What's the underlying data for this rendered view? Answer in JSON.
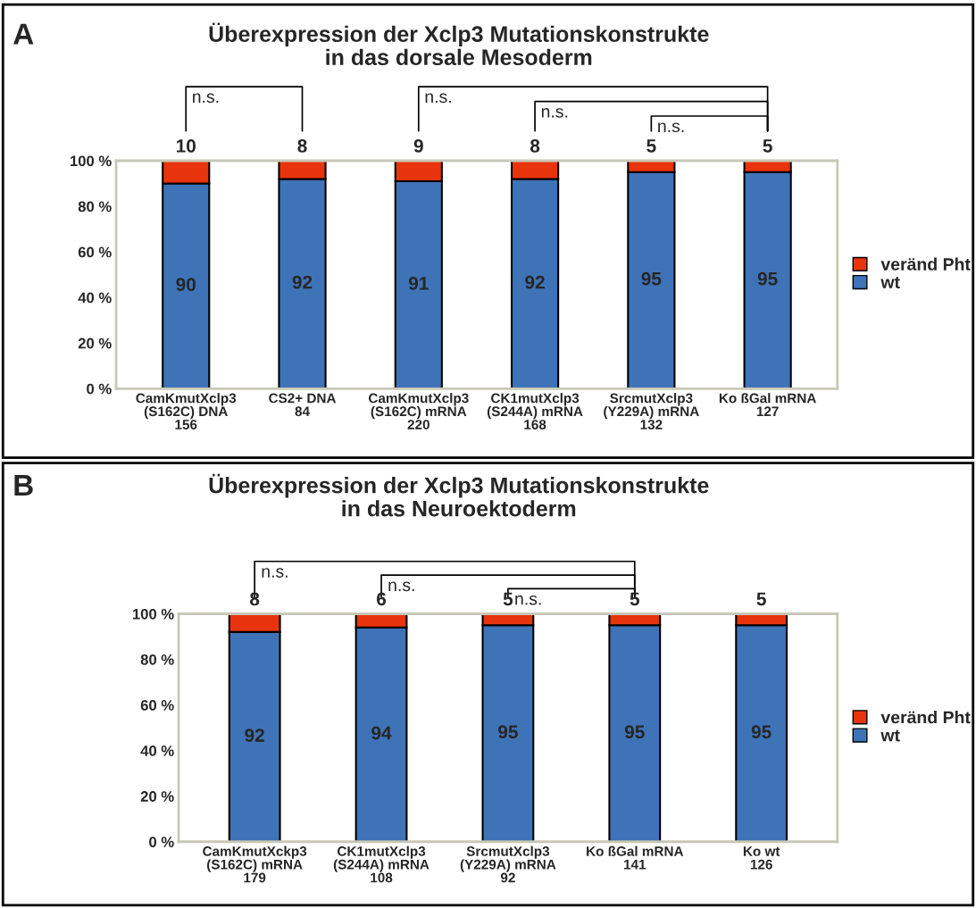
{
  "chart_data": [
    {
      "type": "bar",
      "title": "Überexpression der Xclp3 Mutationskonstrukte\nin das dorsale Mesoderm",
      "stacked": true,
      "data_labels": true,
      "legend": "right",
      "grid": false,
      "categories": [
        "CamKmutXclp3\n(S162C) DNA\n156",
        "CS2+ DNA\n84",
        "CamKmutXclp3\n(S162C) mRNA\n220",
        "CK1mutXclp3\n(S244A) mRNA\n168",
        "SrcmutXclp3\n(Y229A) mRNA\n132",
        "Ko ßGal mRNA\n127"
      ],
      "series": [
        {
          "name": "wt",
          "color": "#3f73b8",
          "values": [
            90,
            92,
            91,
            92,
            95,
            95
          ]
        },
        {
          "name": "veränd Pht",
          "color": "#e8340c",
          "values": [
            10,
            8,
            9,
            8,
            5,
            5
          ]
        }
      ],
      "ylim": [
        0,
        100
      ],
      "yticks": [
        {
          "value": 0,
          "label": "0 %"
        },
        {
          "value": 20,
          "label": "20 %"
        },
        {
          "value": 40,
          "label": "40 %"
        },
        {
          "value": 60,
          "label": "60 %"
        },
        {
          "value": 80,
          "label": "80 %"
        },
        {
          "value": 100,
          "label": "100 %"
        }
      ],
      "annotations": [
        "A",
        "n.s.",
        "n.s.",
        "n.s.",
        "n.s."
      ]
    },
    {
      "type": "bar",
      "title": "Überexpression der Xclp3 Mutationskonstrukte\nin das Neuroektoderm",
      "stacked": true,
      "data_labels": true,
      "legend": "right",
      "grid": false,
      "categories": [
        "CamKmutXckp3\n(S162C) mRNA\n179",
        "CK1mutXclp3\n(S244A) mRNA\n108",
        "SrcmutXclp3\n(Y229A) mRNA\n92",
        "Ko ßGal mRNA\n141",
        "Ko wt\n126"
      ],
      "series": [
        {
          "name": "wt",
          "color": "#3f73b8",
          "values": [
            92,
            94,
            95,
            95,
            95
          ]
        },
        {
          "name": "veränd Pht",
          "color": "#e8340c",
          "values": [
            8,
            6,
            5,
            5,
            5
          ]
        }
      ],
      "ylim": [
        0,
        100
      ],
      "yticks": [
        {
          "value": 0,
          "label": "0 %"
        },
        {
          "value": 20,
          "label": "20 %"
        },
        {
          "value": 40,
          "label": "40 %"
        },
        {
          "value": 60,
          "label": "60 %"
        },
        {
          "value": 80,
          "label": "80 %"
        },
        {
          "value": 100,
          "label": "100 %"
        }
      ],
      "annotations": [
        "B",
        "n.s.",
        "n.s.",
        "n.s."
      ]
    }
  ]
}
